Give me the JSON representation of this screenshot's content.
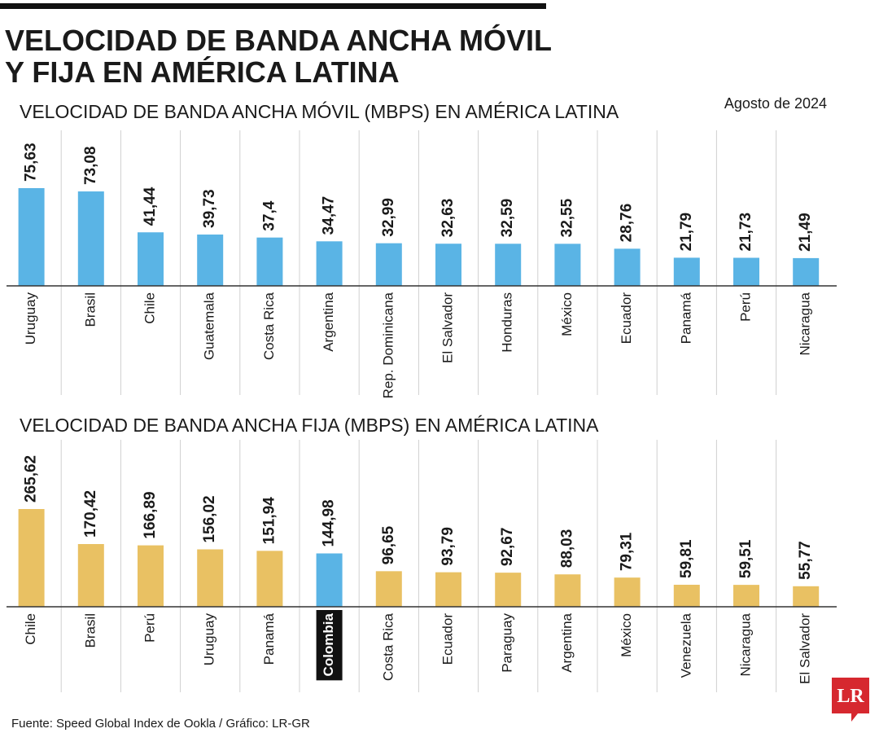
{
  "title": [
    "VELOCIDAD DE BANDA ANCHA MÓVIL",
    "Y FIJA EN AMÉRICA LATINA"
  ],
  "date": "Agosto de 2024",
  "source": "Fuente: Speed Global Index de Ookla / Gráfico: LR-GR",
  "logo": "LR",
  "chart_data": [
    {
      "type": "bar",
      "title": "VELOCIDAD DE BANDA ANCHA MÓVIL (MBPS) EN AMÉRICA LATINA",
      "categories": [
        "Uruguay",
        "Brasil",
        "Chile",
        "Guatemala",
        "Costa Rica",
        "Argentina",
        "Rep. Dominicana",
        "El Salvador",
        "Honduras",
        "México",
        "Ecuador",
        "Panamá",
        "Perú",
        "Nicaragua"
      ],
      "values": [
        75.63,
        73.08,
        41.44,
        39.73,
        37.4,
        34.47,
        32.99,
        32.63,
        32.59,
        32.55,
        28.76,
        21.79,
        21.73,
        21.49
      ],
      "value_labels": [
        "75,63",
        "73,08",
        "41,44",
        "39,73",
        "37,4",
        "34,47",
        "32,99",
        "32,63",
        "32,59",
        "32,55",
        "28,76",
        "21,79",
        "21,73",
        "21,49"
      ],
      "color": "#5ab4e5"
    },
    {
      "type": "bar",
      "title": "VELOCIDAD DE BANDA ANCHA FIJA (MBPS) EN AMÉRICA LATINA",
      "categories": [
        "Chile",
        "Brasil",
        "Perú",
        "Uruguay",
        "Panamá",
        "Colombia",
        "Costa Rica",
        "Ecuador",
        "Paraguay",
        "Argentina",
        "México",
        "Venezuela",
        "Nicaragua",
        "El Salvador"
      ],
      "values": [
        265.62,
        170.42,
        166.89,
        156.02,
        151.94,
        144.98,
        96.65,
        93.79,
        92.67,
        88.03,
        79.31,
        59.81,
        59.51,
        55.77
      ],
      "value_labels": [
        "265,62",
        "170,42",
        "166,89",
        "156,02",
        "151,94",
        "144,98",
        "96,65",
        "93,79",
        "92,67",
        "88,03",
        "79,31",
        "59,81",
        "59,51",
        "55,77"
      ],
      "color": "#e9c163",
      "colors": [
        "#e9c163",
        "#e9c163",
        "#e9c163",
        "#e9c163",
        "#e9c163",
        "#5ab4e5",
        "#e9c163",
        "#e9c163",
        "#e9c163",
        "#e9c163",
        "#e9c163",
        "#e9c163",
        "#e9c163",
        "#e9c163"
      ]
    }
  ]
}
